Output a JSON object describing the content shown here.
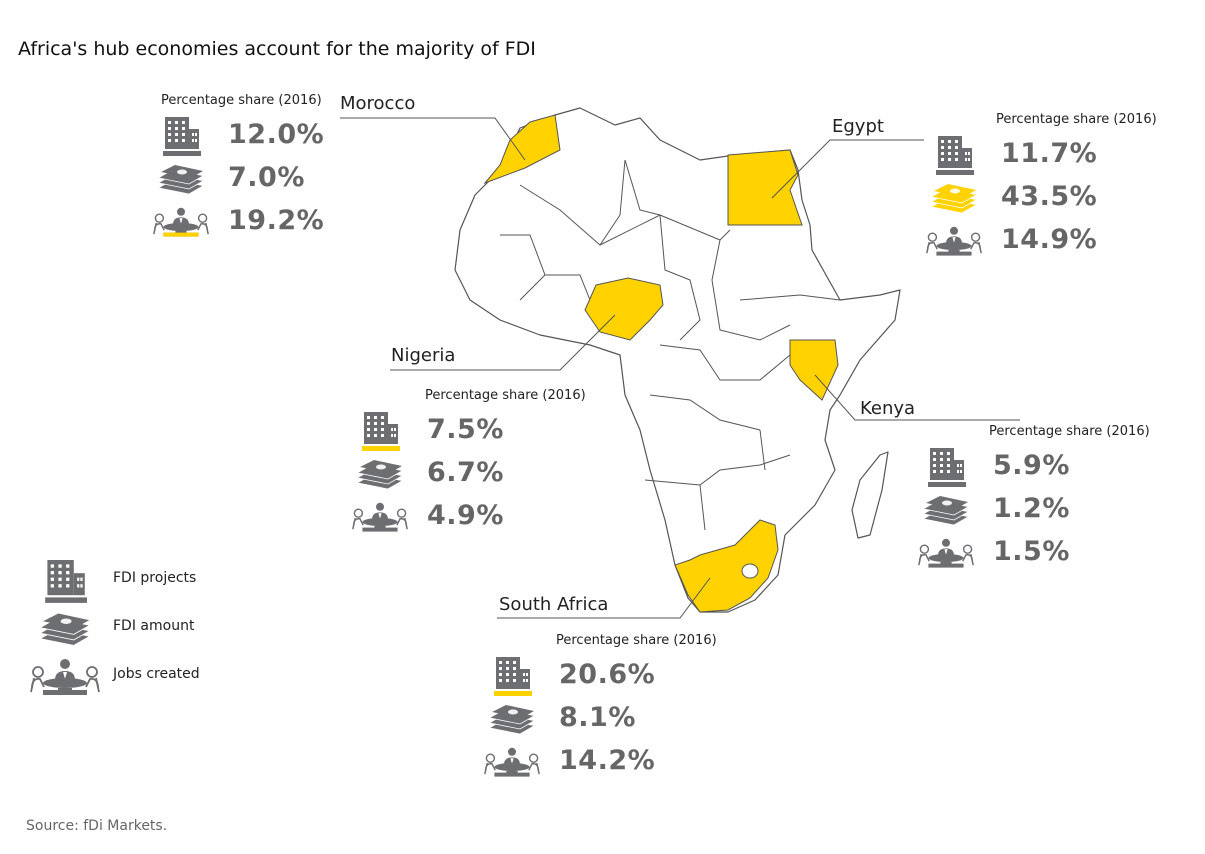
{
  "title": "Africa's hub economies account for the majority of FDI",
  "source": "Source: fDi Markets.",
  "colors": {
    "highlight": "#FFD200",
    "icon": "#6d6e71",
    "value": "#666666",
    "map_fill": "#ffffff",
    "map_stroke": "#555555"
  },
  "icons": {
    "projects": "office-building-icon",
    "amount": "money-stack-icon",
    "jobs": "meeting-table-icon"
  },
  "legend": [
    {
      "icon": "office-building-icon",
      "label": "FDI projects"
    },
    {
      "icon": "money-stack-icon",
      "label": "FDI amount"
    },
    {
      "icon": "meeting-table-icon",
      "label": "Jobs created"
    }
  ],
  "chart_data": {
    "type": "table",
    "title": "Africa's hub economies account for the majority of FDI",
    "header": "Percentage share (2016)",
    "metrics": [
      "FDI projects",
      "FDI amount",
      "Jobs created"
    ],
    "countries": [
      {
        "name": "Morocco",
        "header": "Percentage share (2016)",
        "values": [
          "12.0%",
          "7.0%",
          "19.2%"
        ],
        "highlight": "jobs"
      },
      {
        "name": "Egypt",
        "header": "Percentage share (2016)",
        "values": [
          "11.7%",
          "43.5%",
          "14.9%"
        ],
        "highlight": "amount"
      },
      {
        "name": "Nigeria",
        "header": "Percentage share (2016)",
        "values": [
          "7.5%",
          "6.7%",
          "4.9%"
        ],
        "highlight": "projects"
      },
      {
        "name": "Kenya",
        "header": "Percentage share (2016)",
        "values": [
          "5.9%",
          "1.2%",
          "1.5%"
        ],
        "highlight": "none"
      },
      {
        "name": "South Africa",
        "header": "Percentage share (2016)",
        "values": [
          "20.6%",
          "8.1%",
          "14.2%"
        ],
        "highlight": "projects"
      }
    ]
  }
}
